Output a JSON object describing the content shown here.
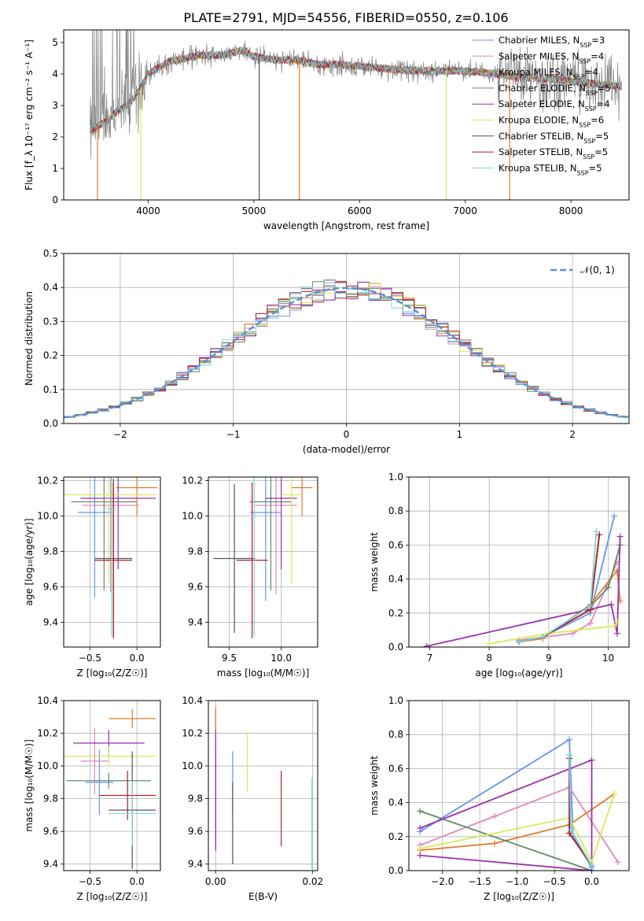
{
  "figure": {
    "title": "PLATE=2791, MJD=54556, FIBERID=0550, z=0.106"
  },
  "models": [
    {
      "name": "Chabrier MILES",
      "nssp": "3",
      "color": "#6495ED"
    },
    {
      "name": "Salpeter MILES",
      "nssp": "4",
      "color": "#E08ABD"
    },
    {
      "name": "Kroupa MILES",
      "nssp": "4",
      "color": "#E07B28"
    },
    {
      "name": "Chabrier ELODIE",
      "nssp": "5",
      "color": "#5E8C68"
    },
    {
      "name": "Salpeter ELODIE",
      "nssp": "4",
      "color": "#9B30B0"
    },
    {
      "name": "Kroupa ELODIE",
      "nssp": "6",
      "color": "#D9E85A"
    },
    {
      "name": "Chabrier STELIB",
      "nssp": "5",
      "color": "#555555"
    },
    {
      "name": "Salpeter STELIB",
      "nssp": "5",
      "color": "#B21F1F"
    },
    {
      "name": "Kroupa STELIB",
      "nssp": "5",
      "color": "#7FD3DC"
    }
  ],
  "chart_data": [
    {
      "type": "line",
      "xlabel": "wavelength [Angstrom, rest frame]",
      "ylabel": "Flux [f_λ 10⁻¹⁷ erg cm⁻² s⁻¹ A⁻¹]",
      "xlim": [
        3200,
        8550
      ],
      "ylim": [
        0,
        5.4
      ],
      "xticks": [
        "4000",
        "5000",
        "6000",
        "7000",
        "8000"
      ],
      "yticks": [
        "0",
        "1",
        "2",
        "3",
        "4",
        "5"
      ],
      "legend": "top-right",
      "data_color": "#808080",
      "continuum": [
        [
          3450,
          2.2
        ],
        [
          3600,
          2.5
        ],
        [
          3700,
          2.8
        ],
        [
          3800,
          3.0
        ],
        [
          3900,
          3.4
        ],
        [
          4000,
          4.0
        ],
        [
          4200,
          4.4
        ],
        [
          4500,
          4.6
        ],
        [
          4700,
          4.6
        ],
        [
          4900,
          4.75
        ],
        [
          5000,
          4.55
        ],
        [
          5200,
          4.45
        ],
        [
          5400,
          4.45
        ],
        [
          5600,
          4.3
        ],
        [
          5800,
          4.3
        ],
        [
          6000,
          4.25
        ],
        [
          6300,
          4.15
        ],
        [
          6600,
          4.1
        ],
        [
          6900,
          4.1
        ],
        [
          7200,
          4.05
        ],
        [
          7500,
          3.9
        ],
        [
          7800,
          3.85
        ],
        [
          8200,
          3.7
        ],
        [
          8500,
          3.6
        ]
      ]
    },
    {
      "type": "histogram",
      "xlabel": "(data-model)/error",
      "ylabel": "Normed distribution",
      "xlim": [
        -2.5,
        2.5
      ],
      "ylim": [
        0,
        0.5
      ],
      "xticks": [
        "−2",
        "−1",
        "0",
        "1",
        "2"
      ],
      "yticks": [
        "0.0",
        "0.1",
        "0.2",
        "0.3",
        "0.4",
        "0.5"
      ],
      "grid": true,
      "legend": "top-right",
      "reference": {
        "name": "𝒩(0, 1)",
        "color": "#5B8FD9"
      },
      "bin_width": 0.1
    },
    {
      "type": "errorbar",
      "xlabel": "Z [log₁₀(Z/Z☉)]",
      "ylabel": "age  [log₁₀(age/yr)]",
      "xlim": [
        -0.78,
        0.25
      ],
      "ylim": [
        9.26,
        10.22
      ],
      "xticks": [
        "−0.5",
        "0.0"
      ],
      "yticks": [
        "9.4",
        "9.6",
        "9.8",
        "10.0",
        "10.2"
      ],
      "grid": true,
      "points": [
        {
          "model": 0,
          "x": -0.45,
          "y": 10.02,
          "xerr": 0.18,
          "yerr": 0.48
        },
        {
          "model": 1,
          "x": -0.28,
          "y": 10.06,
          "xerr": 0.3,
          "yerr": 0.49
        },
        {
          "model": 2,
          "x": 0.0,
          "y": 10.16,
          "xerr": 0.22,
          "yerr": 0.16
        },
        {
          "model": 3,
          "x": -0.35,
          "y": 10.08,
          "xerr": 0.35,
          "yerr": 0.5
        },
        {
          "model": 4,
          "x": -0.2,
          "y": 10.1,
          "xerr": 0.4,
          "yerr": 0.4
        },
        {
          "model": 5,
          "x": -0.3,
          "y": 10.12,
          "xerr": 0.5,
          "yerr": 0.5
        },
        {
          "model": 6,
          "x": -0.25,
          "y": 9.76,
          "xerr": 0.2,
          "yerr": 0.45
        },
        {
          "model": 7,
          "x": -0.25,
          "y": 9.75,
          "xerr": 0.2,
          "yerr": 0.44
        },
        {
          "model": 8,
          "x": -0.27,
          "y": 10.04,
          "xerr": 0.05,
          "yerr": 0.72
        }
      ]
    },
    {
      "type": "errorbar",
      "xlabel": "mass [log₁₀(M/M☉)]",
      "ylabel": "",
      "xlim": [
        9.3,
        10.35
      ],
      "ylim": [
        9.26,
        10.22
      ],
      "xticks": [
        "9.5",
        "10.0"
      ],
      "yticks": [
        "9.4",
        "9.6",
        "9.8",
        "10.0",
        "10.2"
      ],
      "grid": true,
      "points": [
        {
          "model": 0,
          "x": 9.85,
          "y": 10.02,
          "xerr": 0.15,
          "yerr": 0.5
        },
        {
          "model": 1,
          "x": 9.95,
          "y": 10.06,
          "xerr": 0.2,
          "yerr": 0.5
        },
        {
          "model": 2,
          "x": 10.2,
          "y": 10.16,
          "xerr": 0.1,
          "yerr": 0.16
        },
        {
          "model": 3,
          "x": 9.9,
          "y": 10.08,
          "xerr": 0.2,
          "yerr": 0.5
        },
        {
          "model": 4,
          "x": 10.0,
          "y": 10.1,
          "xerr": 0.15,
          "yerr": 0.4
        },
        {
          "model": 5,
          "x": 10.1,
          "y": 10.12,
          "xerr": 0.1,
          "yerr": 0.5
        },
        {
          "model": 6,
          "x": 9.55,
          "y": 9.76,
          "xerr": 0.2,
          "yerr": 0.42
        },
        {
          "model": 7,
          "x": 9.72,
          "y": 9.75,
          "xerr": 0.15,
          "yerr": 0.44
        },
        {
          "model": 8,
          "x": 9.74,
          "y": 10.0,
          "xerr": 0.04,
          "yerr": 0.68
        }
      ]
    },
    {
      "type": "line",
      "xlabel": "age  [log₁₀(age/yr)]",
      "ylabel": "mass weight",
      "xlim": [
        6.65,
        10.35
      ],
      "ylim": [
        0,
        1.0
      ],
      "xticks": [
        "7",
        "8",
        "9",
        "10"
      ],
      "yticks": [
        "0.0",
        "0.2",
        "0.4",
        "0.6",
        "0.8",
        "1.0"
      ],
      "grid": true,
      "series": [
        {
          "model": 0,
          "x": [
            8.5,
            8.9,
            9.7,
            10.1
          ],
          "y": [
            0.03,
            0.06,
            0.2,
            0.77
          ]
        },
        {
          "model": 1,
          "x": [
            8.5,
            9.4,
            9.7,
            10.15
          ],
          "y": [
            0.04,
            0.08,
            0.14,
            0.5
          ]
        },
        {
          "model": 2,
          "x": [
            8.5,
            8.9,
            9.7,
            10.15,
            10.2
          ],
          "y": [
            0.03,
            0.05,
            0.25,
            0.45,
            0.27
          ]
        },
        {
          "model": 3,
          "x": [
            8.5,
            8.9,
            9.7,
            10.0,
            10.2
          ],
          "y": [
            0.03,
            0.06,
            0.24,
            0.35,
            0.6
          ]
        },
        {
          "model": 4,
          "x": [
            6.95,
            10.05,
            10.15,
            10.2
          ],
          "y": [
            0.005,
            0.25,
            0.08,
            0.65
          ]
        },
        {
          "model": 5,
          "x": [
            8.0,
            9.0,
            9.5,
            10.0,
            10.1,
            10.15
          ],
          "y": [
            0.02,
            0.08,
            0.1,
            0.12,
            0.12,
            0.15
          ]
        },
        {
          "model": 6,
          "x": [
            8.5,
            8.9,
            9.7,
            9.85
          ],
          "y": [
            0.03,
            0.06,
            0.22,
            0.66
          ]
        },
        {
          "model": 7,
          "x": [
            8.5,
            8.9,
            9.7,
            9.85
          ],
          "y": [
            0.03,
            0.06,
            0.22,
            0.66
          ]
        },
        {
          "model": 8,
          "x": [
            8.5,
            8.9,
            9.7,
            9.8
          ],
          "y": [
            0.03,
            0.06,
            0.24,
            0.68
          ]
        }
      ]
    },
    {
      "type": "errorbar",
      "xlabel": "Z [log₁₀(Z/Z☉)]",
      "ylabel": "mass [log₁₀(M/M☉)]",
      "xlim": [
        -0.78,
        0.25
      ],
      "ylim": [
        9.36,
        10.4
      ],
      "xticks": [
        "−0.5",
        "0.0"
      ],
      "yticks": [
        "9.4",
        "9.6",
        "9.8",
        "10.0",
        "10.2",
        "10.4"
      ],
      "grid": true,
      "points": [
        {
          "model": 0,
          "x": -0.4,
          "y": 9.9,
          "xerr": 0.15,
          "yerr": 0.2
        },
        {
          "model": 1,
          "x": -0.45,
          "y": 10.03,
          "xerr": 0.15,
          "yerr": 0.2
        },
        {
          "model": 2,
          "x": -0.05,
          "y": 10.29,
          "xerr": 0.25,
          "yerr": 0.06
        },
        {
          "model": 3,
          "x": -0.3,
          "y": 9.91,
          "xerr": 0.45,
          "yerr": 0.05
        },
        {
          "model": 4,
          "x": -0.3,
          "y": 10.14,
          "xerr": 0.38,
          "yerr": 0.08
        },
        {
          "model": 5,
          "x": -0.3,
          "y": 10.06,
          "xerr": 0.5,
          "yerr": 0.06
        },
        {
          "model": 6,
          "x": -0.05,
          "y": 9.73,
          "xerr": 0.25,
          "yerr": 0.36
        },
        {
          "model": 7,
          "x": -0.1,
          "y": 9.82,
          "xerr": 0.3,
          "yerr": 0.15
        },
        {
          "model": 8,
          "x": -0.05,
          "y": 9.71,
          "xerr": 0.25,
          "yerr": 0.2
        }
      ]
    },
    {
      "type": "errorbar",
      "xlabel": "E(B-V)",
      "ylabel": "",
      "xlim": [
        -0.0015,
        0.021
      ],
      "ylim": [
        9.36,
        10.4
      ],
      "xticks": [
        "0.00",
        "0.02"
      ],
      "yticks": [
        "9.4",
        "9.6",
        "9.8",
        "10.0",
        "10.2",
        "10.4"
      ],
      "grid": true,
      "points": [
        {
          "model": 0,
          "x": 0.0035,
          "y": 9.9,
          "xerr": 0,
          "yerr": 0.19
        },
        {
          "model": 1,
          "x": 0.0,
          "y": 9.95,
          "xerr": 0,
          "yerr": 0.4
        },
        {
          "model": 2,
          "x": 0.0,
          "y": 10.0,
          "xerr": 0,
          "yerr": 0.36
        },
        {
          "model": 3,
          "x": 0.0,
          "y": 9.8,
          "xerr": 0,
          "yerr": 0.3
        },
        {
          "model": 4,
          "x": 0.0,
          "y": 9.85,
          "xerr": 0,
          "yerr": 0.37
        },
        {
          "model": 5,
          "x": 0.0065,
          "y": 10.02,
          "xerr": 0,
          "yerr": 0.18
        },
        {
          "model": 6,
          "x": 0.0035,
          "y": 9.65,
          "xerr": 0,
          "yerr": 0.25
        },
        {
          "model": 7,
          "x": 0.0135,
          "y": 9.74,
          "xerr": 0,
          "yerr": 0.23
        },
        {
          "model": 8,
          "x": 0.0198,
          "y": 9.65,
          "xerr": 0,
          "yerr": 0.28
        }
      ]
    },
    {
      "type": "line",
      "xlabel": "Z [log₁₀(Z/Z☉)]",
      "ylabel": "mass weight",
      "xlim": [
        -2.45,
        0.5
      ],
      "ylim": [
        0,
        1.0
      ],
      "xticks": [
        "−2.0",
        "−1.5",
        "−1.0",
        "−0.5",
        "0.0"
      ],
      "yticks": [
        "0.0",
        "0.2",
        "0.4",
        "0.6",
        "0.8",
        "1.0"
      ],
      "grid": true,
      "series": [
        {
          "model": 0,
          "x": [
            -2.3,
            -0.3,
            -0.25,
            0.0
          ],
          "y": [
            0.23,
            0.77,
            0.2,
            0.02
          ]
        },
        {
          "model": 1,
          "x": [
            -2.3,
            -1.3,
            -0.3,
            0.35
          ],
          "y": [
            0.15,
            0.32,
            0.49,
            0.05
          ]
        },
        {
          "model": 2,
          "x": [
            -2.3,
            -1.3,
            -0.3,
            0.3
          ],
          "y": [
            0.12,
            0.16,
            0.27,
            0.45
          ]
        },
        {
          "model": 3,
          "x": [
            -2.3,
            0.0
          ],
          "y": [
            0.35,
            0.0
          ]
        },
        {
          "model": 4,
          "x": [
            -2.3,
            0.0,
            0.0,
            -2.3
          ],
          "y": [
            0.09,
            0.0,
            0.65,
            0.25
          ]
        },
        {
          "model": 5,
          "x": [
            -2.3,
            -0.3,
            0.0,
            0.3
          ],
          "y": [
            0.13,
            0.31,
            0.05,
            0.45
          ]
        },
        {
          "model": 6,
          "x": [
            -0.3,
            -0.3,
            0.0
          ],
          "y": [
            0.66,
            0.22,
            0.03
          ]
        },
        {
          "model": 7,
          "x": [
            -0.3,
            -0.3,
            0.0
          ],
          "y": [
            0.66,
            0.22,
            0.03
          ]
        },
        {
          "model": 8,
          "x": [
            -0.3,
            -0.28,
            0.0
          ],
          "y": [
            0.68,
            0.24,
            0.03
          ]
        }
      ]
    }
  ]
}
